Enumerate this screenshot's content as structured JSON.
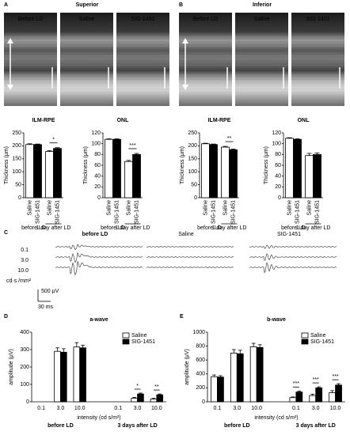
{
  "panels": [
    {
      "letter": "A",
      "title": "Superior",
      "images": [
        "Before LD",
        "Saline",
        "SIG-1451"
      ]
    },
    {
      "letter": "B",
      "title": "Inferior",
      "images": [
        "Before LD",
        "Saline",
        "SIG-1451"
      ]
    }
  ],
  "erg": {
    "letter": "C",
    "conditions": [
      "before LD",
      "Saline",
      "SIG-1451"
    ],
    "intensities": [
      "0.1",
      "3.0",
      "10.0"
    ],
    "unit": "cd·s /mm²",
    "scale_voltage": "500 μV",
    "scale_time": "30 ms"
  },
  "chart_data": [
    {
      "type": "bar",
      "title": "ILM-RPE",
      "ylabel": "Thickness (μm)",
      "ylim": [
        0,
        250
      ],
      "yticks": [
        0,
        50,
        100,
        150,
        200,
        250
      ],
      "categories": [
        "before LD",
        "1 day after LD"
      ],
      "significance": [
        null,
        "*"
      ],
      "series": [
        {
          "name": "Saline",
          "color": "#ffffff",
          "values": [
            205,
            178
          ],
          "errors": [
            3,
            4
          ]
        },
        {
          "name": "SIG-1451",
          "color": "#000000",
          "values": [
            205,
            190
          ],
          "errors": [
            2,
            3
          ]
        }
      ]
    },
    {
      "type": "bar",
      "title": "ONL",
      "ylabel": "Thickness (μm)",
      "ylim": [
        0,
        120
      ],
      "yticks": [
        0,
        20,
        40,
        60,
        80,
        100,
        120
      ],
      "categories": [
        "before LD",
        "1 day after LD"
      ],
      "significance": [
        null,
        "***"
      ],
      "series": [
        {
          "name": "Saline",
          "color": "#ffffff",
          "values": [
            108,
            67
          ],
          "errors": [
            1,
            2
          ]
        },
        {
          "name": "SIG-1451",
          "color": "#000000",
          "values": [
            108,
            80
          ],
          "errors": [
            1,
            2
          ]
        }
      ]
    },
    {
      "type": "bar",
      "title": "ILM-RPE",
      "ylabel": "Thickness (μm)",
      "ylim": [
        0,
        250
      ],
      "yticks": [
        0,
        50,
        100,
        150,
        200,
        250
      ],
      "categories": [
        "before LD",
        "1 day after LD"
      ],
      "significance": [
        null,
        "**"
      ],
      "series": [
        {
          "name": "Saline",
          "color": "#ffffff",
          "values": [
            208,
            195
          ],
          "errors": [
            2,
            3
          ]
        },
        {
          "name": "SIG-1451",
          "color": "#000000",
          "values": [
            205,
            185
          ],
          "errors": [
            2,
            3
          ]
        }
      ]
    },
    {
      "type": "bar",
      "title": "ONL",
      "ylabel": "Thickness (μm)",
      "ylim": [
        0,
        120
      ],
      "yticks": [
        0,
        20,
        40,
        60,
        80,
        100,
        120
      ],
      "categories": [
        "before LD",
        "1 day after LD"
      ],
      "significance": [
        null,
        null
      ],
      "series": [
        {
          "name": "Saline",
          "color": "#ffffff",
          "values": [
            110,
            78
          ],
          "errors": [
            1,
            4
          ]
        },
        {
          "name": "SIG-1451",
          "color": "#000000",
          "values": [
            108,
            80
          ],
          "errors": [
            1,
            3
          ]
        }
      ]
    },
    {
      "type": "bar",
      "letter": "D",
      "title": "a-wave",
      "ylabel": "amplitude (μV)",
      "xlabel": "intensity (cd s/m²)",
      "ylim": [
        0,
        400
      ],
      "yticks": [
        0,
        100,
        200,
        300,
        400
      ],
      "groups": [
        "before LD",
        "3 days after LD"
      ],
      "categories": [
        [
          "0.1",
          "3.0",
          "10.0"
        ],
        [
          "0.1",
          "3.0",
          "10.0"
        ]
      ],
      "significance": [
        [
          null,
          null,
          null
        ],
        [
          null,
          "*",
          "**"
        ]
      ],
      "series": [
        {
          "name": "Saline",
          "color": "#ffffff",
          "values": [
            [
              null,
              290,
              315
            ],
            [
              null,
              20,
              15
            ]
          ],
          "errors": [
            [
              null,
              20,
              25
            ],
            [
              null,
              5,
              5
            ]
          ]
        },
        {
          "name": "SIG-1451",
          "color": "#000000",
          "values": [
            [
              null,
              285,
              310
            ],
            [
              null,
              45,
              40
            ]
          ],
          "errors": [
            [
              null,
              20,
              15
            ],
            [
              null,
              5,
              5
            ]
          ]
        }
      ]
    },
    {
      "type": "bar",
      "letter": "E",
      "title": "b-wave",
      "ylabel": "amplitude (μV)",
      "xlabel": "intensity (cd s/m²)",
      "ylim": [
        0,
        1000
      ],
      "yticks": [
        0,
        200,
        400,
        600,
        800,
        1000
      ],
      "groups": [
        "before LD",
        "3 days after LD"
      ],
      "categories": [
        [
          "0.1",
          "3.0",
          "10.0"
        ],
        [
          "0.1",
          "3.0",
          "10.0"
        ]
      ],
      "significance": [
        [
          null,
          null,
          null
        ],
        [
          "***",
          "***",
          "***"
        ]
      ],
      "series": [
        {
          "name": "Saline",
          "color": "#ffffff",
          "values": [
            [
              360,
              700,
              790
            ],
            [
              60,
              90,
              130
            ]
          ],
          "errors": [
            [
              25,
              50,
              50
            ],
            [
              10,
              20,
              30
            ]
          ]
        },
        {
          "name": "SIG-1451",
          "color": "#000000",
          "values": [
            [
              355,
              690,
              780
            ],
            [
              140,
              200,
              240
            ]
          ],
          "errors": [
            [
              20,
              50,
              40
            ],
            [
              15,
              15,
              20
            ]
          ]
        }
      ]
    }
  ]
}
